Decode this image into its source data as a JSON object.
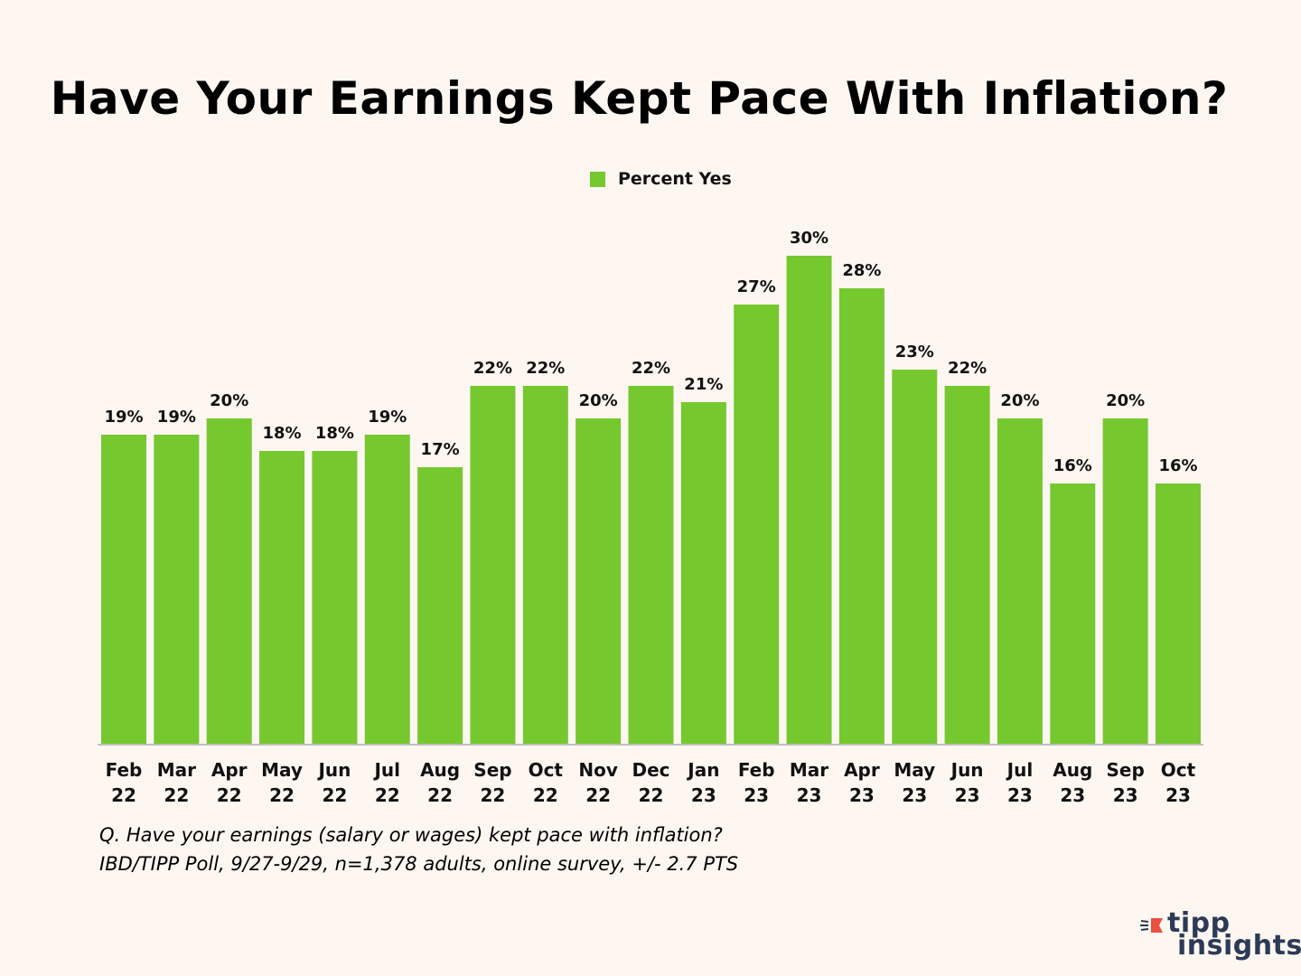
{
  "chart_data": {
    "type": "bar",
    "title": "Have Your Earnings Kept Pace With Inflation?",
    "legend": {
      "position": "top-center"
    },
    "series": [
      {
        "name": "Percent Yes",
        "color": "#76c82f",
        "values": [
          19,
          19,
          20,
          18,
          18,
          19,
          17,
          22,
          22,
          20,
          22,
          21,
          27,
          30,
          28,
          23,
          22,
          20,
          16,
          20,
          16
        ],
        "labels": [
          "19%",
          "19%",
          "20%",
          "18%",
          "18%",
          "19%",
          "17%",
          "22%",
          "22%",
          "20%",
          "22%",
          "21%",
          "27%",
          "30%",
          "28%",
          "23%",
          "22%",
          "20%",
          "16%",
          "20%",
          "16%"
        ]
      }
    ],
    "categories": [
      [
        "Feb",
        "22"
      ],
      [
        "Mar",
        "22"
      ],
      [
        "Apr",
        "22"
      ],
      [
        "May",
        "22"
      ],
      [
        "Jun",
        "22"
      ],
      [
        "Jul",
        "22"
      ],
      [
        "Aug",
        "22"
      ],
      [
        "Sep",
        "22"
      ],
      [
        "Oct",
        "22"
      ],
      [
        "Nov",
        "22"
      ],
      [
        "Dec",
        "22"
      ],
      [
        "Jan",
        "23"
      ],
      [
        "Feb",
        "23"
      ],
      [
        "Mar",
        "23"
      ],
      [
        "Apr",
        "23"
      ],
      [
        "May",
        "23"
      ],
      [
        "Jun",
        "23"
      ],
      [
        "Jul",
        "23"
      ],
      [
        "Aug",
        "23"
      ],
      [
        "Sep",
        "23"
      ],
      [
        "Oct",
        "23"
      ]
    ],
    "ylim": [
      0,
      30
    ],
    "xlabel": "",
    "ylabel": "",
    "grid": false
  },
  "footnote": {
    "line1": "Q. Have your earnings (salary or wages) kept pace with inflation?",
    "line2": "IBD/TIPP Poll, 9/27-9/29, n=1,378 adults, online survey, +/- 2.7 PTS"
  },
  "logo": {
    "word1": "tipp",
    "word2": "insights",
    "icon": "flag-arrow-icon",
    "color": "#2c3a55",
    "accent": "#e8503f"
  }
}
